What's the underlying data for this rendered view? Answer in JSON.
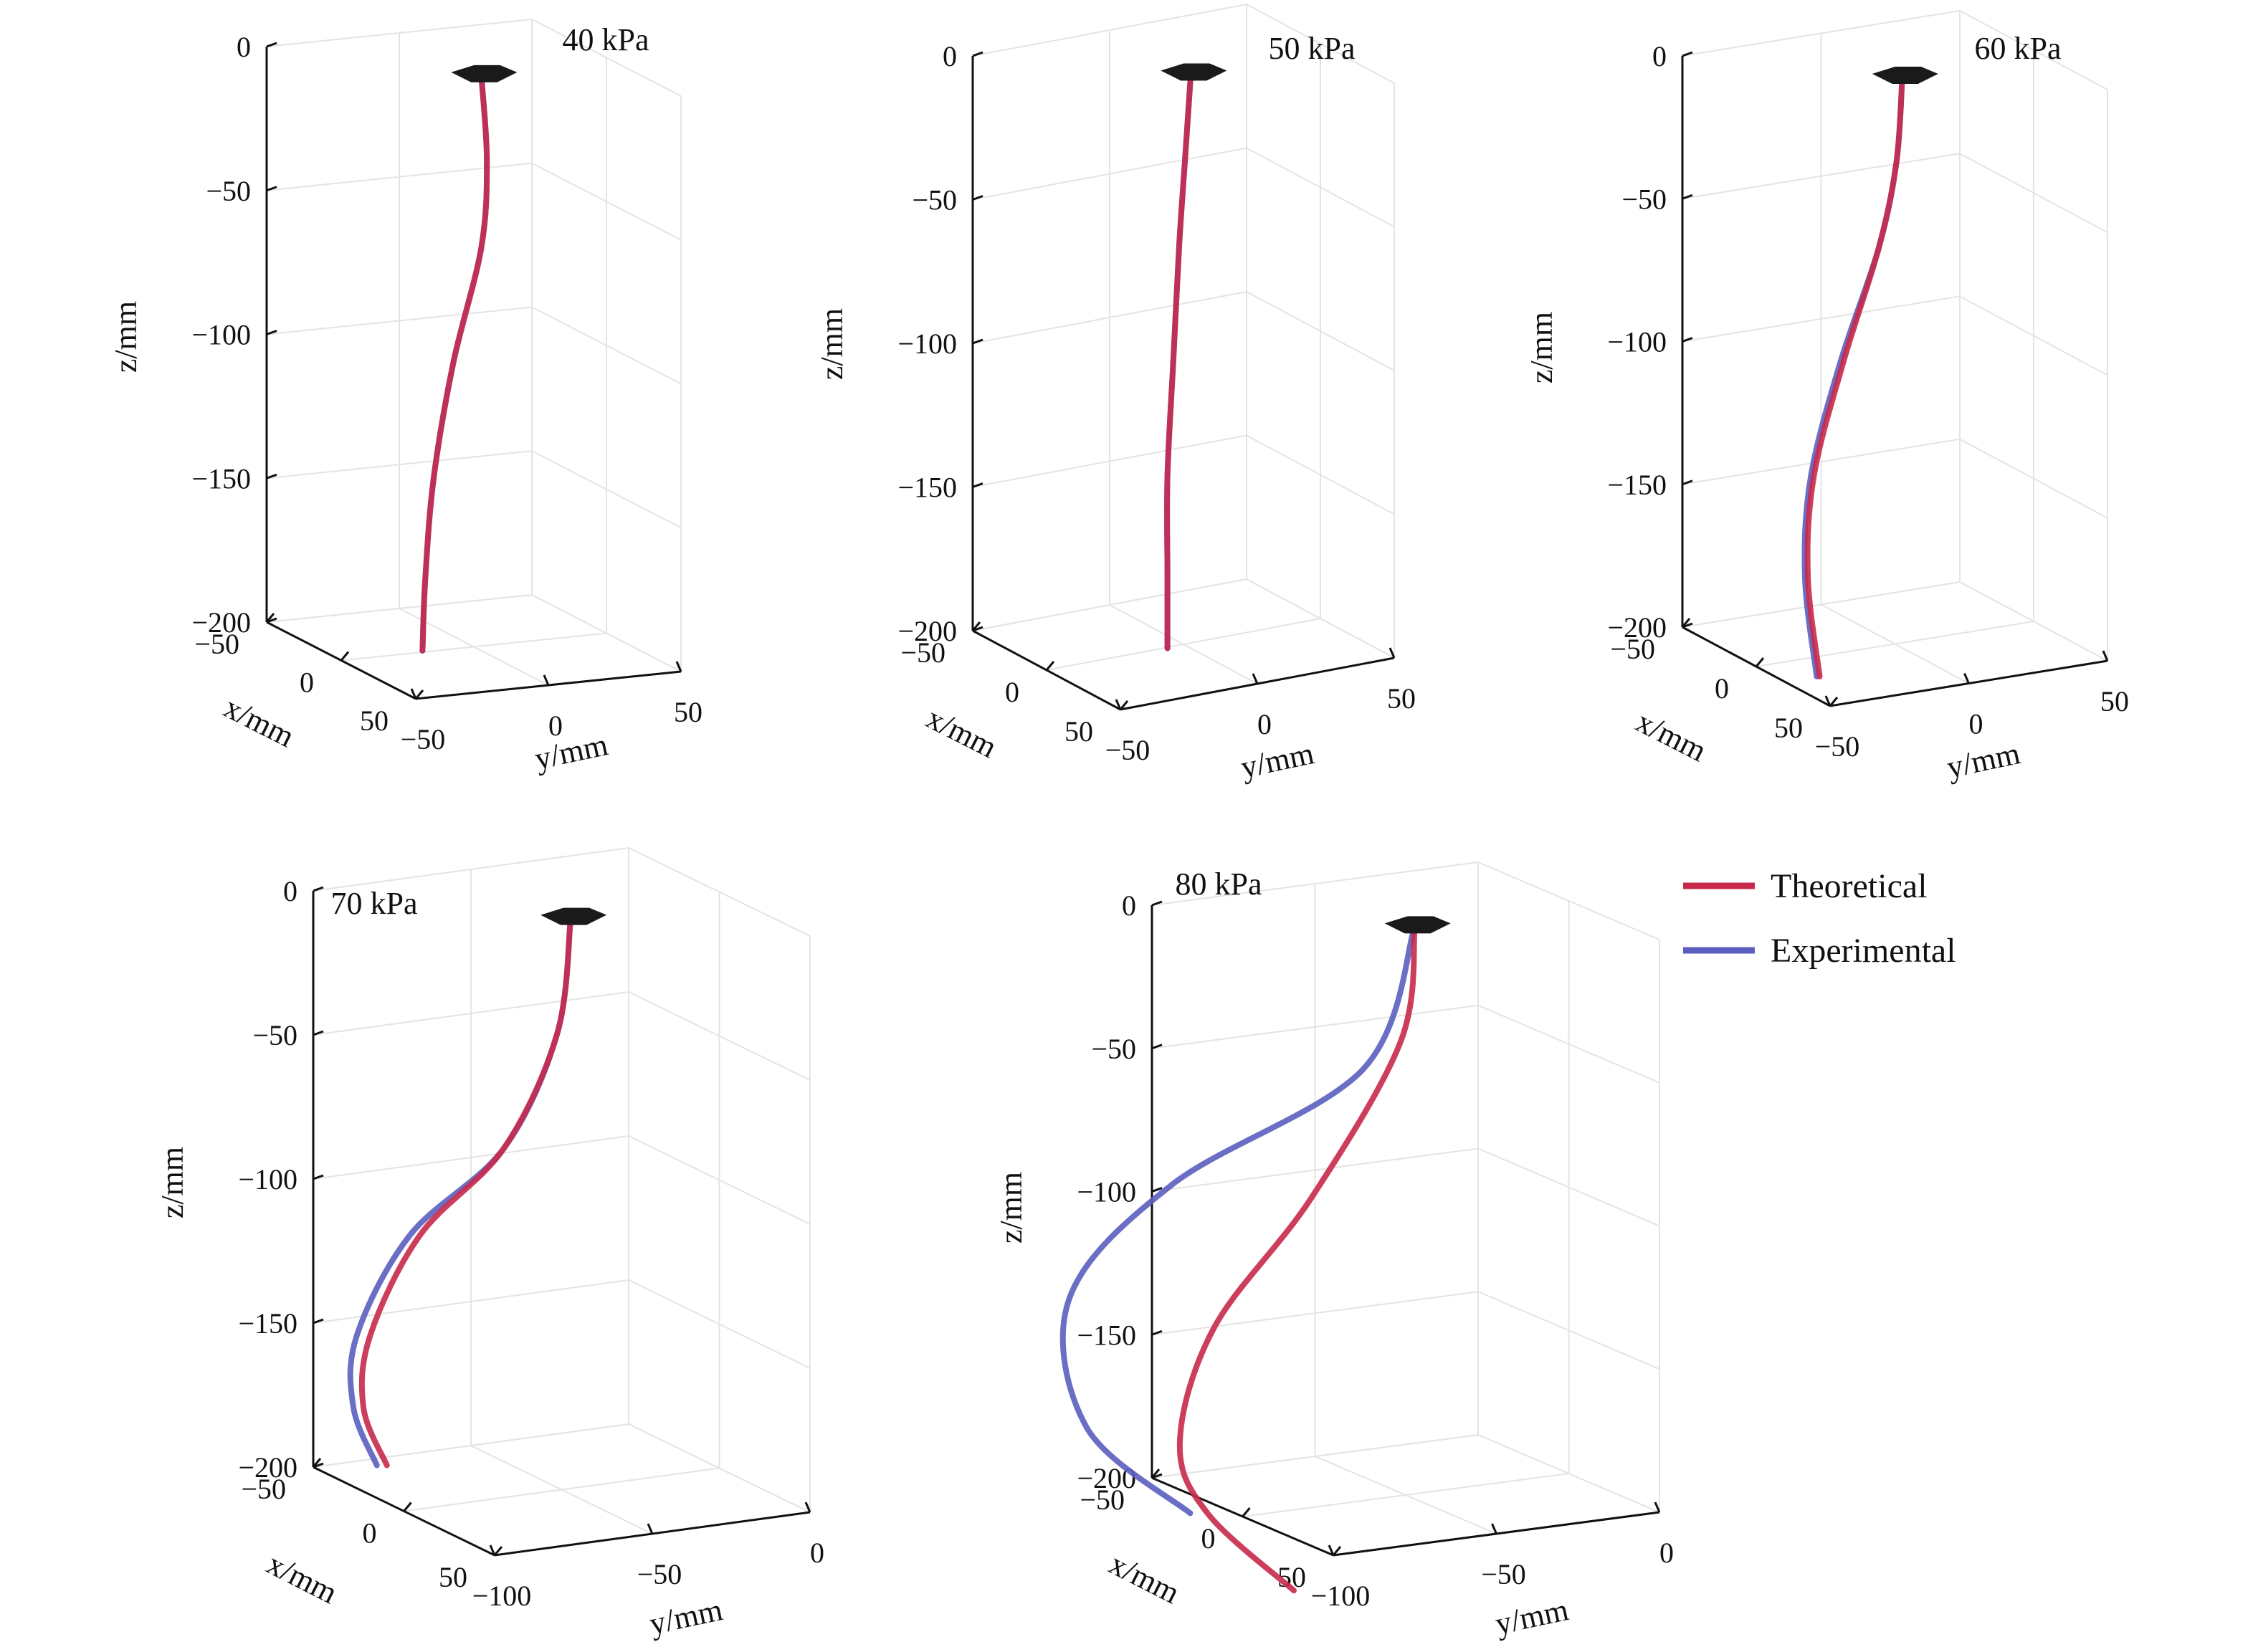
{
  "legend": {
    "items": [
      {
        "label": "Theoretical",
        "color": "#c8294a"
      },
      {
        "label": "Experimental",
        "color": "#5a5fbf"
      }
    ]
  },
  "chart_data": [
    {
      "type": "line",
      "panel_label": "40 kPa",
      "xlabel": "x/mm",
      "ylabel": "y/mm",
      "zlabel": "z/mm",
      "xlim": [
        -50,
        50
      ],
      "ylim": [
        -50,
        50
      ],
      "zlim": [
        -200,
        0
      ],
      "x_ticks": [
        "−50",
        "0",
        "50"
      ],
      "y_ticks": [
        "−50",
        "0",
        "50"
      ],
      "z_ticks": [
        "0",
        "−50",
        "−100",
        "−150",
        "−200"
      ],
      "grid": true,
      "series": [
        {
          "name": "Theoretical",
          "points": [
            [
              0,
              0,
              0
            ],
            [
              0,
              2,
              -30
            ],
            [
              0,
              0,
              -60
            ],
            [
              0,
              -10,
              -100
            ],
            [
              0,
              -17,
              -140
            ],
            [
              0,
              -20,
              -175
            ],
            [
              0,
              -21,
              -200
            ]
          ]
        },
        {
          "name": "Experimental",
          "points": [
            [
              0,
              0,
              0
            ],
            [
              0,
              2,
              -30
            ],
            [
              0,
              0,
              -60
            ],
            [
              0,
              -10,
              -100
            ],
            [
              0,
              -17,
              -140
            ],
            [
              0,
              -20,
              -175
            ],
            [
              0,
              -21,
              -200
            ]
          ]
        }
      ]
    },
    {
      "type": "line",
      "panel_label": "50 kPa",
      "xlabel": "x/mm",
      "ylabel": "y/mm",
      "zlabel": "z/mm",
      "xlim": [
        -50,
        50
      ],
      "ylim": [
        -50,
        50
      ],
      "zlim": [
        -200,
        0
      ],
      "x_ticks": [
        "−50",
        "0",
        "50"
      ],
      "y_ticks": [
        "−50",
        "0",
        "50"
      ],
      "z_ticks": [
        "0",
        "−50",
        "−100",
        "−150",
        "−200"
      ],
      "grid": true,
      "series": [
        {
          "name": "Theoretical",
          "points": [
            [
              0,
              0,
              0
            ],
            [
              0,
              -2,
              -30
            ],
            [
              0,
              -4,
              -60
            ],
            [
              0,
              -6,
              -100
            ],
            [
              0,
              -8,
              -140
            ],
            [
              0,
              -8,
              -175
            ],
            [
              0,
              -8,
              -200
            ]
          ]
        },
        {
          "name": "Experimental",
          "points": [
            [
              0,
              0,
              0
            ],
            [
              0,
              -2,
              -30
            ],
            [
              0,
              -4,
              -60
            ],
            [
              0,
              -6,
              -100
            ],
            [
              0,
              -8,
              -140
            ],
            [
              0,
              -8,
              -175
            ],
            [
              0,
              -8,
              -200
            ]
          ]
        }
      ]
    },
    {
      "type": "line",
      "panel_label": "60 kPa",
      "xlabel": "x/mm",
      "ylabel": "y/mm",
      "zlabel": "z/mm",
      "xlim": [
        -50,
        50
      ],
      "ylim": [
        -50,
        50
      ],
      "zlim": [
        -200,
        0
      ],
      "x_ticks": [
        "−50",
        "0",
        "50"
      ],
      "y_ticks": [
        "−50",
        "0",
        "50"
      ],
      "z_ticks": [
        "0",
        "−50",
        "−100",
        "−150",
        "−200"
      ],
      "grid": true,
      "series": [
        {
          "name": "Theoretical",
          "points": [
            [
              0,
              0,
              0
            ],
            [
              0,
              -2,
              -30
            ],
            [
              0,
              -8,
              -60
            ],
            [
              0,
              -20,
              -100
            ],
            [
              0,
              -30,
              -140
            ],
            [
              0,
              -32,
              -175
            ],
            [
              0,
              -28,
              -210
            ]
          ]
        },
        {
          "name": "Experimental",
          "points": [
            [
              0,
              0,
              0
            ],
            [
              0,
              -2,
              -30
            ],
            [
              0,
              -8,
              -60
            ],
            [
              0,
              -21,
              -100
            ],
            [
              0,
              -31,
              -140
            ],
            [
              0,
              -33,
              -175
            ],
            [
              0,
              -29,
              -210
            ]
          ]
        }
      ]
    },
    {
      "type": "line",
      "panel_label": "70 kPa",
      "xlabel": "x/mm",
      "ylabel": "y/mm",
      "zlabel": "z/mm",
      "xlim": [
        -50,
        50
      ],
      "ylim": [
        -100,
        0
      ],
      "zlim": [
        -200,
        0
      ],
      "x_ticks": [
        "−50",
        "0",
        "50"
      ],
      "y_ticks": [
        "−100",
        "−50",
        "0"
      ],
      "z_ticks": [
        "0",
        "−50",
        "−100",
        "−150",
        "−200"
      ],
      "grid": true,
      "series": [
        {
          "name": "Theoretical",
          "points": [
            [
              0,
              0,
              0
            ],
            [
              0,
              -4,
              -40
            ],
            [
              0,
              -20,
              -80
            ],
            [
              0,
              -45,
              -110
            ],
            [
              0,
              -60,
              -145
            ],
            [
              0,
              -62,
              -170
            ],
            [
              0,
              -55,
              -190
            ]
          ]
        },
        {
          "name": "Experimental",
          "points": [
            [
              0,
              0,
              0
            ],
            [
              0,
              -4,
              -40
            ],
            [
              0,
              -20,
              -80
            ],
            [
              0,
              -48,
              -110
            ],
            [
              0,
              -64,
              -145
            ],
            [
              0,
              -65,
              -170
            ],
            [
              0,
              -58,
              -190
            ]
          ]
        }
      ]
    },
    {
      "type": "line",
      "panel_label": "80 kPa",
      "xlabel": "x/mm",
      "ylabel": "y/mm",
      "zlabel": "z/mm",
      "xlim": [
        -50,
        50
      ],
      "ylim": [
        -100,
        0
      ],
      "zlim": [
        -200,
        0
      ],
      "x_ticks": [
        "−50",
        "0",
        "50"
      ],
      "y_ticks": [
        "−100",
        "−50",
        "0"
      ],
      "z_ticks": [
        "0",
        "−50",
        "−100",
        "−150",
        "−200"
      ],
      "grid": true,
      "series": [
        {
          "name": "Theoretical",
          "points": [
            [
              0,
              0,
              0
            ],
            [
              0,
              -4,
              -40
            ],
            [
              0,
              -30,
              -95
            ],
            [
              0,
              -58,
              -140
            ],
            [
              0,
              -68,
              -180
            ],
            [
              0,
              -60,
              -205
            ],
            [
              0,
              -35,
              -232
            ]
          ]
        },
        {
          "name": "Experimental",
          "points": [
            [
              0,
              0,
              0
            ],
            [
              0,
              -15,
              -50
            ],
            [
              0,
              -70,
              -90
            ],
            [
              0,
              -100,
              -130
            ],
            [
              0,
              -95,
              -175
            ],
            [
              0,
              -65,
              -205
            ]
          ]
        }
      ]
    }
  ]
}
